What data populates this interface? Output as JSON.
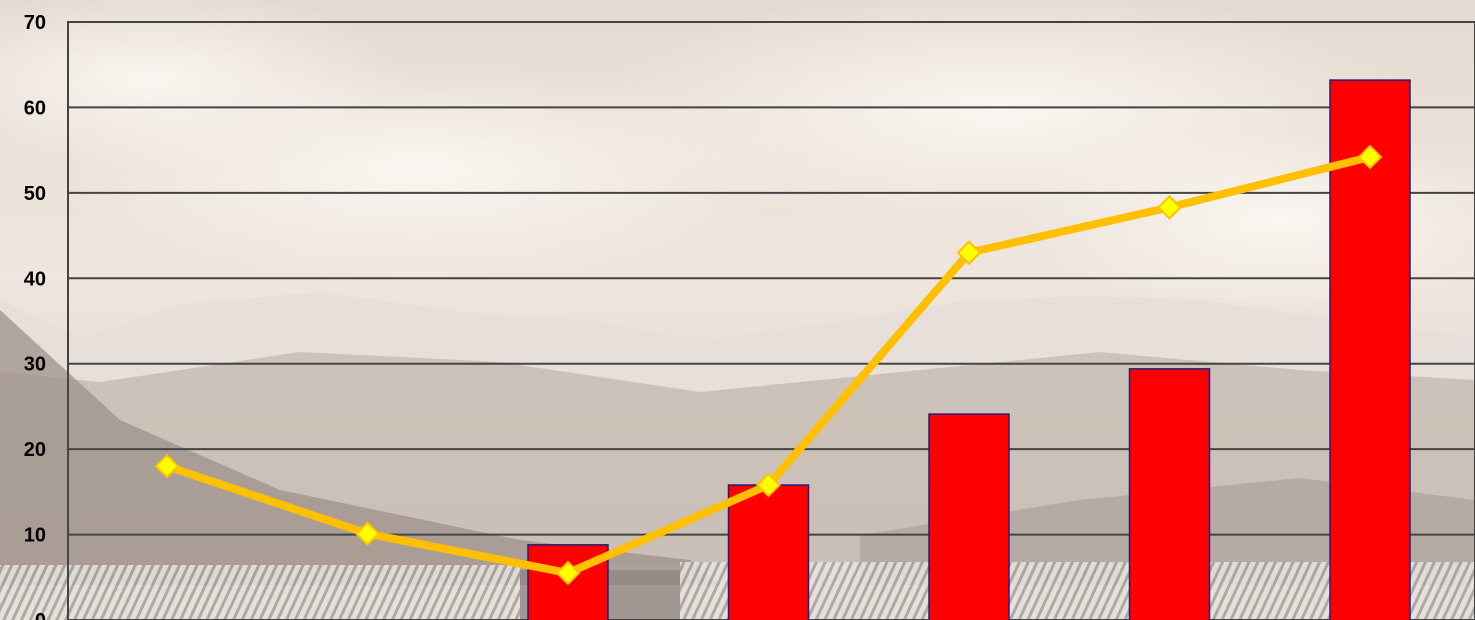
{
  "chart_data": {
    "type": "bar",
    "title": "",
    "xlabel": "",
    "ylabel": "",
    "ylim": [
      0,
      70
    ],
    "yticks": [
      "0",
      "10",
      "20",
      "30",
      "40",
      "50",
      "60",
      "70"
    ],
    "grid": true,
    "categories": [
      "",
      "",
      "",
      "",
      "",
      "",
      ""
    ],
    "series": [
      {
        "type": "bar",
        "values": [
          0,
          0,
          8.8,
          15.8,
          24.1,
          29.4,
          63.2
        ],
        "color": "#ff0000"
      },
      {
        "type": "line",
        "values": [
          18.0,
          10.1,
          5.5,
          15.8,
          43.0,
          48.3,
          54.2
        ],
        "color": "#ffc000",
        "marker_color": "#ffff00"
      }
    ]
  },
  "colors": {
    "grid": "#444444",
    "bar_edge": "#20207a"
  }
}
